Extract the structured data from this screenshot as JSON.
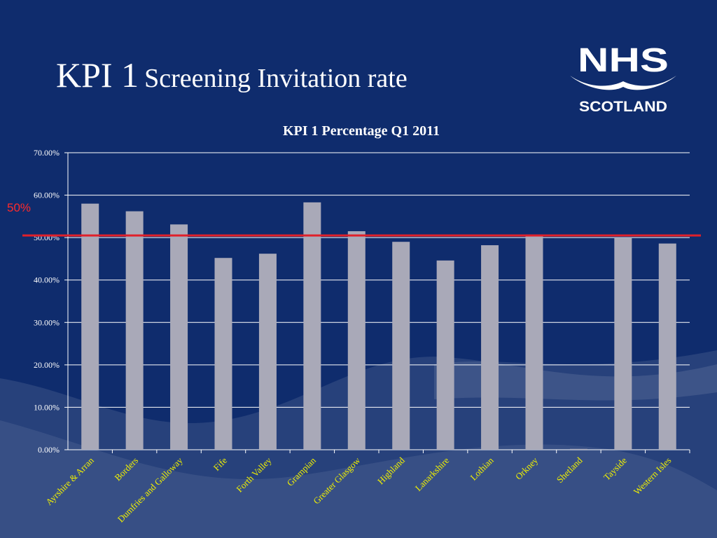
{
  "slide": {
    "title_prefix": "KPI 1",
    "title_rest": "Screening Invitation rate"
  },
  "logo": {
    "line1": "NHS",
    "line2": "SCOTLAND"
  },
  "reference_line": {
    "label": "50%",
    "value": 50.5,
    "color": "#e0202a"
  },
  "colors": {
    "background": "#0f2c6d",
    "bar": "#a9a9b8",
    "grid": "#ffffff",
    "tick_text": "#ffffff",
    "category_text": "#f2f200",
    "title_text": "#ffffff"
  },
  "chart_data": {
    "type": "bar",
    "title": "KPI 1 Percentage Q1 2011",
    "xlabel": "",
    "ylabel": "",
    "ylim": [
      0,
      70
    ],
    "yticks": [
      "0.00%",
      "10.00%",
      "20.00%",
      "30.00%",
      "40.00%",
      "50.00%",
      "60.00%",
      "70.00%"
    ],
    "grid": true,
    "categories": [
      "Ayrshire & Arran",
      "Borders",
      "Dumfries and Galloway",
      "Fife",
      "Forth Valley",
      "Grampian",
      "Greater Glasgow",
      "Highland",
      "Lanarkshire",
      "Lothian",
      "Orkney",
      "Shetland",
      "Tayside",
      "Western Isles"
    ],
    "values": [
      58.0,
      56.2,
      53.1,
      45.2,
      46.2,
      58.3,
      51.5,
      49.0,
      44.6,
      48.2,
      50.7,
      0.2,
      50.0,
      48.6
    ]
  }
}
